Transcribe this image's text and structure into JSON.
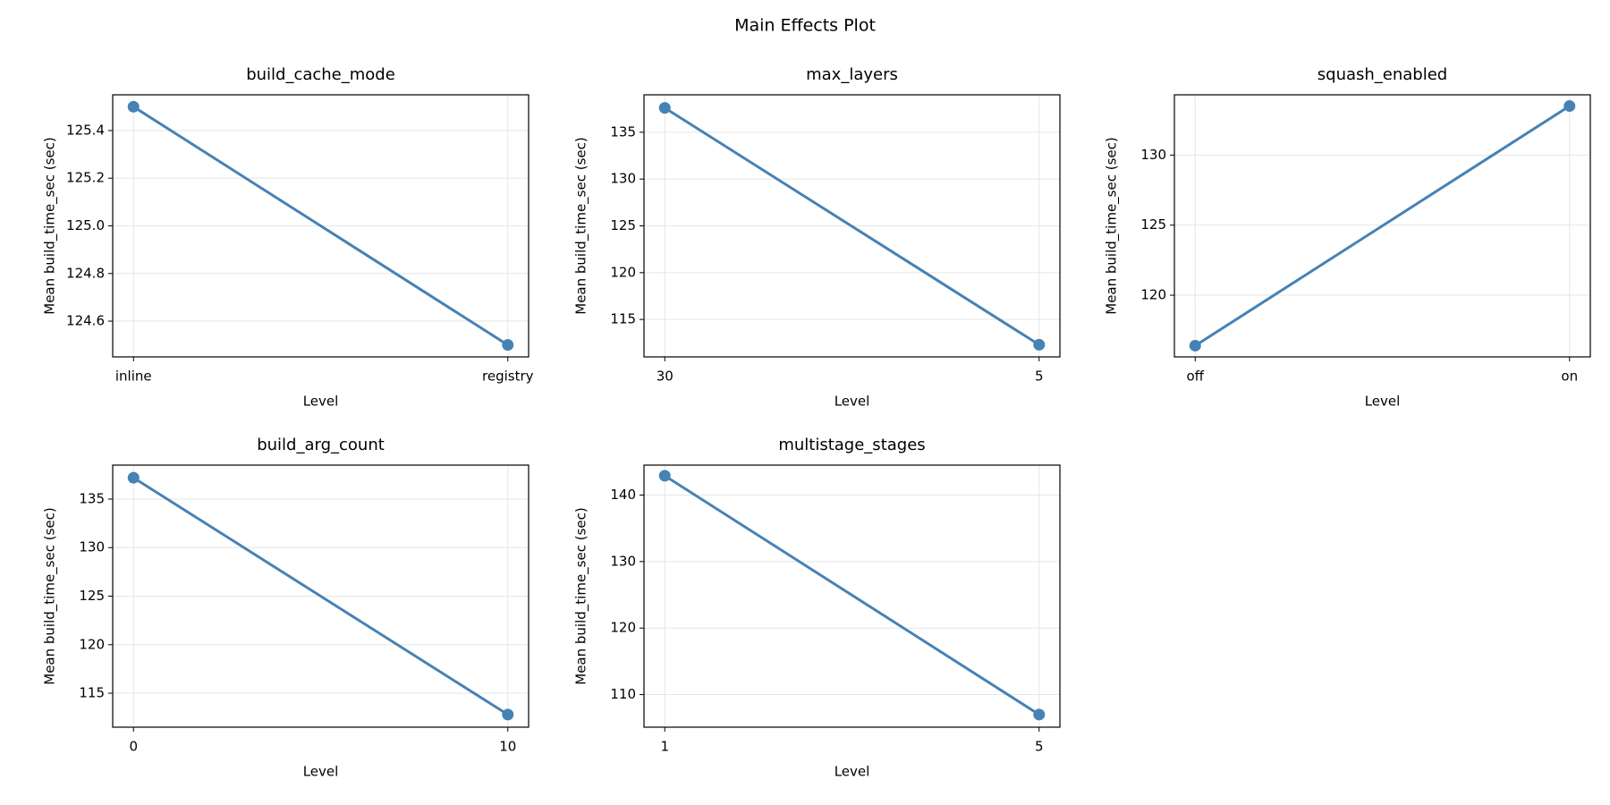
{
  "title": "Main Effects Plot",
  "chart_data": [
    {
      "type": "line",
      "title": "build_cache_mode",
      "xlabel": "Level",
      "ylabel": "Mean build_time_sec (sec)",
      "categories": [
        "inline",
        "registry"
      ],
      "values": [
        125.5,
        124.5
      ],
      "color": "#4682b4",
      "ylim": [
        124.45,
        125.55
      ],
      "yticks": [
        124.6,
        124.8,
        {
          "value": 125,
          "label": "125.0"
        },
        125.2,
        125.4
      ],
      "grid": true
    },
    {
      "type": "line",
      "title": "max_layers",
      "xlabel": "Level",
      "ylabel": "Mean build_time_sec (sec)",
      "categories": [
        "30",
        "5"
      ],
      "values": [
        137.6,
        112.3
      ],
      "color": "#4682b4",
      "ylim": [
        111.0,
        139.0
      ],
      "yticks": [
        115,
        120,
        125,
        130,
        135
      ],
      "grid": true
    },
    {
      "type": "line",
      "title": "squash_enabled",
      "xlabel": "Level",
      "ylabel": "Mean build_time_sec (sec)",
      "categories": [
        "off",
        "on"
      ],
      "values": [
        116.4,
        133.5
      ],
      "color": "#4682b4",
      "ylim": [
        115.6,
        134.3
      ],
      "yticks": [
        120,
        125,
        130
      ],
      "grid": true
    },
    {
      "type": "line",
      "title": "build_arg_count",
      "xlabel": "Level",
      "ylabel": "Mean build_time_sec (sec)",
      "categories": [
        "0",
        "10"
      ],
      "values": [
        137.2,
        112.8
      ],
      "color": "#4682b4",
      "ylim": [
        111.5,
        138.5
      ],
      "yticks": [
        115,
        120,
        125,
        130,
        135
      ],
      "grid": true
    },
    {
      "type": "line",
      "title": "multistage_stages",
      "xlabel": "Level",
      "ylabel": "Mean build_time_sec (sec)",
      "categories": [
        "1",
        "5"
      ],
      "values": [
        142.9,
        107.0
      ],
      "color": "#4682b4",
      "ylim": [
        105.1,
        144.5
      ],
      "yticks": [
        110,
        120,
        130,
        140
      ],
      "grid": true
    }
  ]
}
